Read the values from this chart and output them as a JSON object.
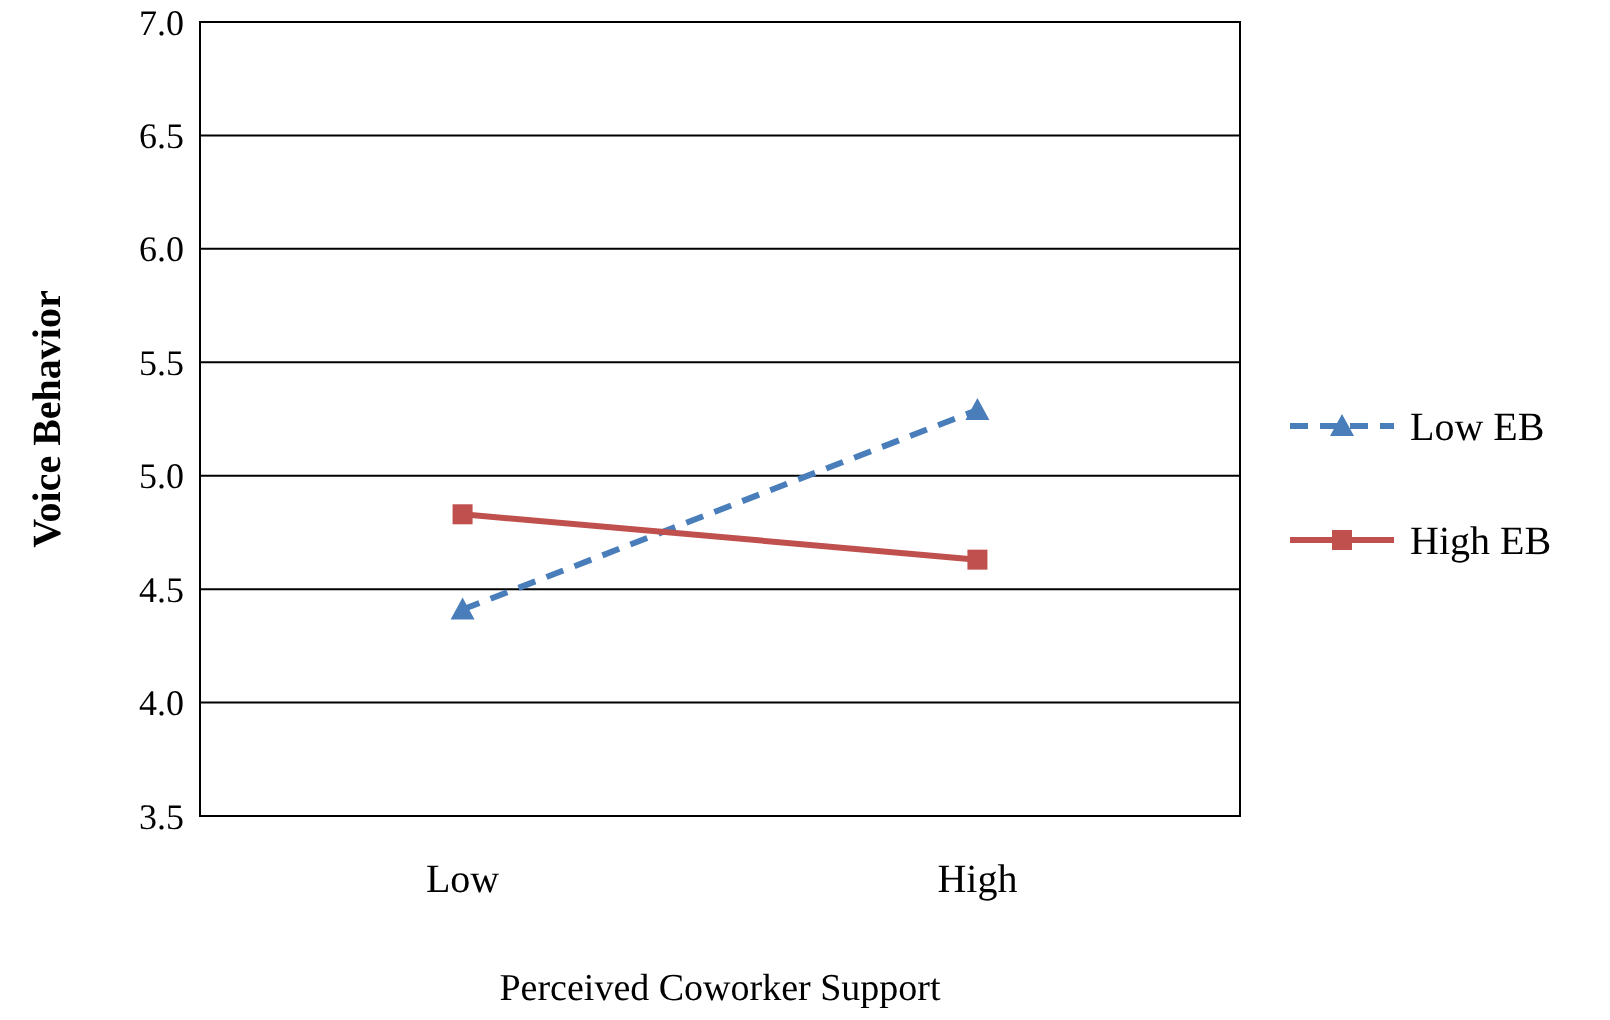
{
  "chart_data": {
    "type": "line",
    "xlabel": "Perceived Coworker Support",
    "ylabel": "Voice Behavior",
    "categories": [
      "Low",
      "High"
    ],
    "series": [
      {
        "name": "Low EB",
        "color": "#4a7ebb",
        "values": [
          4.41,
          5.29
        ],
        "line_style": "dashed",
        "marker": "triangle"
      },
      {
        "name": "High EB",
        "color": "#c0504d",
        "values": [
          4.83,
          4.63
        ],
        "line_style": "solid",
        "marker": "square"
      }
    ],
    "ylim": [
      3.5,
      7
    ],
    "yticks": [
      {
        "value": 3.5,
        "label": "3.5"
      },
      {
        "value": 4,
        "label": "4.0"
      },
      {
        "value": 4.5,
        "label": "4.5"
      },
      {
        "value": 5,
        "label": "5.0"
      },
      {
        "value": 5.5,
        "label": "5.5"
      },
      {
        "value": 6,
        "label": "6.0"
      },
      {
        "value": 6.5,
        "label": "6.5"
      },
      {
        "value": 7,
        "label": "7.0"
      }
    ],
    "grid": "y",
    "legend": "right"
  }
}
